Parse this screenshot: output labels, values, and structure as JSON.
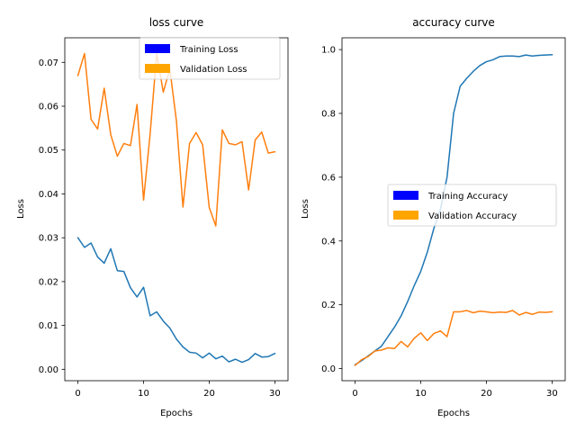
{
  "chart_data": [
    {
      "type": "line",
      "title": "loss curve",
      "xlabel": "Epochs",
      "ylabel": "Loss",
      "xlim": [
        -2,
        32
      ],
      "ylim": [
        -0.0026,
        0.0756
      ],
      "xticks": [
        0,
        10,
        20,
        30
      ],
      "xtick_labels": [
        "0",
        "10",
        "20",
        "30"
      ],
      "yticks": [
        0.0,
        0.01,
        0.02,
        0.03,
        0.04,
        0.05,
        0.06,
        0.07
      ],
      "ytick_labels": [
        "0.00",
        "0.01",
        "0.02",
        "0.03",
        "0.04",
        "0.05",
        "0.06",
        "0.07"
      ],
      "grid": false,
      "legend_position": "upper-right",
      "x": [
        0,
        1,
        2,
        3,
        4,
        5,
        6,
        7,
        8,
        9,
        10,
        11,
        12,
        13,
        14,
        15,
        16,
        17,
        18,
        19,
        20,
        21,
        22,
        23,
        24,
        25,
        26,
        27,
        28,
        29,
        30
      ],
      "series": [
        {
          "name": "Training Loss",
          "color": "#1f77b4",
          "legend_color": "#0000ff",
          "values": [
            0.03,
            0.0278,
            0.0288,
            0.0256,
            0.0242,
            0.0275,
            0.0225,
            0.0223,
            0.0186,
            0.0165,
            0.0187,
            0.0122,
            0.0131,
            0.011,
            0.0094,
            0.0069,
            0.0051,
            0.0039,
            0.0037,
            0.0026,
            0.0037,
            0.0024,
            0.003,
            0.0017,
            0.0023,
            0.0016,
            0.0022,
            0.0036,
            0.0028,
            0.0029,
            0.0036
          ]
        },
        {
          "name": "Validation Loss",
          "color": "#ff7f0e",
          "legend_color": "#ffa500",
          "values": [
            0.067,
            0.072,
            0.057,
            0.0548,
            0.0641,
            0.0535,
            0.0486,
            0.0515,
            0.051,
            0.0604,
            0.0386,
            0.0537,
            0.072,
            0.0632,
            0.0685,
            0.0567,
            0.037,
            0.0515,
            0.054,
            0.0512,
            0.0369,
            0.0327,
            0.0546,
            0.0515,
            0.0512,
            0.0519,
            0.0409,
            0.0523,
            0.0541,
            0.0493,
            0.0496
          ]
        }
      ]
    },
    {
      "type": "line",
      "title": "accuracy curve",
      "xlabel": "Epochs",
      "ylabel": "Loss",
      "xlim": [
        -2,
        32
      ],
      "ylim": [
        -0.038,
        1.037
      ],
      "xticks": [
        0,
        10,
        20,
        30
      ],
      "xtick_labels": [
        "0",
        "10",
        "20",
        "30"
      ],
      "yticks": [
        0.0,
        0.2,
        0.4,
        0.6,
        0.8,
        1.0
      ],
      "ytick_labels": [
        "0.0",
        "0.2",
        "0.4",
        "0.6",
        "0.8",
        "1.0"
      ],
      "grid": false,
      "legend_position": "center-right",
      "x": [
        0,
        1,
        2,
        3,
        4,
        5,
        6,
        7,
        8,
        9,
        10,
        11,
        12,
        13,
        14,
        15,
        16,
        17,
        18,
        19,
        20,
        21,
        22,
        23,
        24,
        25,
        26,
        27,
        28,
        29,
        30
      ],
      "series": [
        {
          "name": "Training Accuracy",
          "color": "#1f77b4",
          "legend_color": "#0000ff",
          "values": [
            0.012,
            0.025,
            0.04,
            0.055,
            0.07,
            0.1,
            0.13,
            0.165,
            0.21,
            0.26,
            0.305,
            0.365,
            0.44,
            0.5,
            0.6,
            0.8,
            0.885,
            0.91,
            0.932,
            0.95,
            0.962,
            0.968,
            0.978,
            0.98,
            0.98,
            0.978,
            0.983,
            0.98,
            0.982,
            0.983,
            0.984
          ]
        },
        {
          "name": "Validation Accuracy",
          "color": "#ff7f0e",
          "legend_color": "#ffa500",
          "values": [
            0.01,
            0.028,
            0.038,
            0.055,
            0.058,
            0.065,
            0.063,
            0.085,
            0.068,
            0.095,
            0.112,
            0.088,
            0.11,
            0.118,
            0.1,
            0.178,
            0.178,
            0.182,
            0.175,
            0.18,
            0.178,
            0.175,
            0.177,
            0.176,
            0.182,
            0.168,
            0.176,
            0.17,
            0.177,
            0.176,
            0.178
          ]
        }
      ]
    }
  ]
}
